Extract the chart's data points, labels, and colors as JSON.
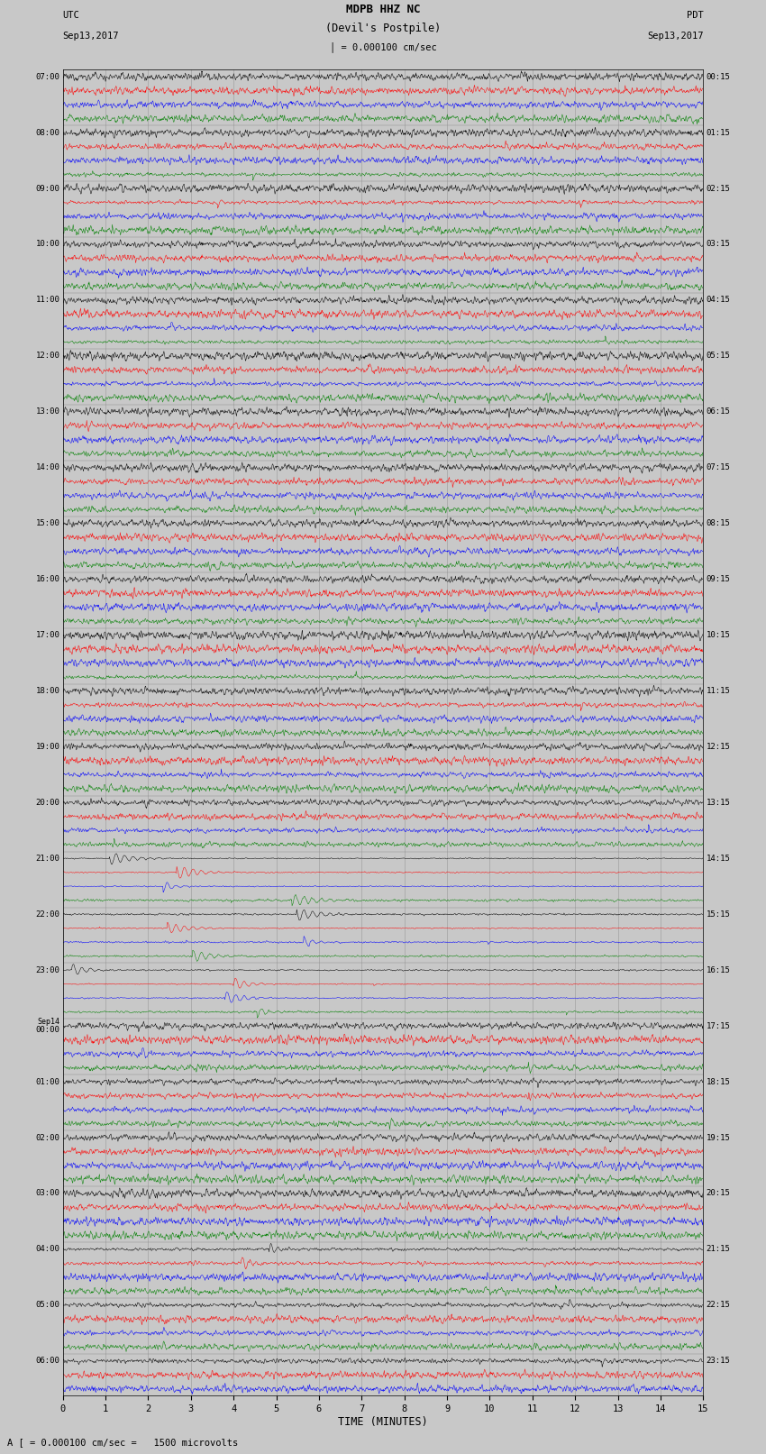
{
  "title_line1": "MDPB HHZ NC",
  "title_line2": "(Devil's Postpile)",
  "scale_label": "= 0.000100 cm/sec",
  "left_header_line1": "UTC",
  "left_header_line2": "Sep13,2017",
  "right_header_line1": "PDT",
  "right_header_line2": "Sep13,2017",
  "bottom_label": "TIME (MINUTES)",
  "bottom_note": "= 0.000100 cm/sec =   1500 microvolts",
  "xlabel_note": "A [",
  "xlim": [
    0,
    15
  ],
  "xticks": [
    0,
    1,
    2,
    3,
    4,
    5,
    6,
    7,
    8,
    9,
    10,
    11,
    12,
    13,
    14,
    15
  ],
  "left_times": [
    "07:00",
    "",
    "",
    "",
    "08:00",
    "",
    "",
    "",
    "09:00",
    "",
    "",
    "",
    "10:00",
    "",
    "",
    "",
    "11:00",
    "",
    "",
    "",
    "12:00",
    "",
    "",
    "",
    "13:00",
    "",
    "",
    "",
    "14:00",
    "",
    "",
    "",
    "15:00",
    "",
    "",
    "",
    "16:00",
    "",
    "",
    "",
    "17:00",
    "",
    "",
    "",
    "18:00",
    "",
    "",
    "",
    "19:00",
    "",
    "",
    "",
    "20:00",
    "",
    "",
    "",
    "21:00",
    "",
    "",
    "",
    "22:00",
    "",
    "",
    "",
    "23:00",
    "",
    "",
    "",
    "Sep14\n00:00",
    "",
    "",
    "",
    "01:00",
    "",
    "",
    "",
    "02:00",
    "",
    "",
    "",
    "03:00",
    "",
    "",
    "",
    "04:00",
    "",
    "",
    "",
    "05:00",
    "",
    "",
    "",
    "06:00",
    "",
    ""
  ],
  "right_times": [
    "00:15",
    "",
    "",
    "",
    "01:15",
    "",
    "",
    "",
    "02:15",
    "",
    "",
    "",
    "03:15",
    "",
    "",
    "",
    "04:15",
    "",
    "",
    "",
    "05:15",
    "",
    "",
    "",
    "06:15",
    "",
    "",
    "",
    "07:15",
    "",
    "",
    "",
    "08:15",
    "",
    "",
    "",
    "09:15",
    "",
    "",
    "",
    "10:15",
    "",
    "",
    "",
    "11:15",
    "",
    "",
    "",
    "12:15",
    "",
    "",
    "",
    "13:15",
    "",
    "",
    "",
    "14:15",
    "",
    "",
    "",
    "15:15",
    "",
    "",
    "",
    "16:15",
    "",
    "",
    "",
    "17:15",
    "",
    "",
    "",
    "18:15",
    "",
    "",
    "",
    "19:15",
    "",
    "",
    "",
    "20:15",
    "",
    "",
    "",
    "21:15",
    "",
    "",
    "",
    "22:15",
    "",
    "",
    "",
    "23:15",
    "",
    ""
  ],
  "trace_colors": [
    "black",
    "red",
    "blue",
    "green"
  ],
  "n_traces_per_hour": 4,
  "bg_color": "#c8c8c8",
  "trace_linewidth": 0.35,
  "figsize": [
    8.5,
    16.13
  ],
  "dpi": 100,
  "grid_color": "#aaaaaa",
  "vgrid_color": "#999999"
}
